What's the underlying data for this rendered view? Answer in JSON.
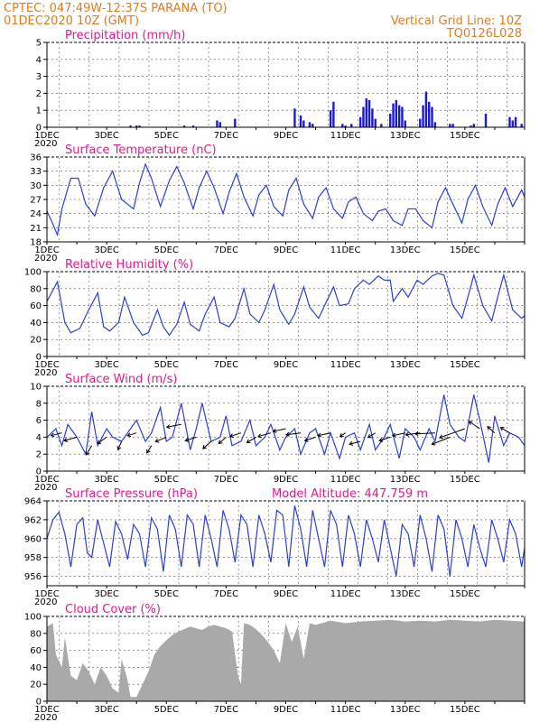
{
  "header": {
    "line1": "CPTEC:   047:49W-12:37S   PARANA (TO)",
    "line2": "01DEC2020  10Z  (GMT)",
    "grid_note": "Vertical Grid Line: 10Z",
    "code": "TQ0126L028"
  },
  "x_axis": {
    "day_labels": [
      "1DEC",
      "3DEC",
      "5DEC",
      "7DEC",
      "9DEC",
      "11DEC",
      "13DEC",
      "15DEC"
    ],
    "year_label": "2020"
  },
  "colors": {
    "line": "#2b3fd9",
    "bar": "#1a1ad6",
    "cloud": "#a9a9a9",
    "header": "#e07b22",
    "panel_title": "#e8188a"
  },
  "chart_data": [
    {
      "id": "precip",
      "type": "bar",
      "title": "Precipitation (mm/h)",
      "ylim": [
        0,
        5
      ],
      "yticks": [
        0,
        1,
        2,
        3,
        4,
        5
      ],
      "x_unit": "days since 01DEC2020 00Z",
      "x": [
        2.8,
        3.0,
        3.1,
        4.6,
        4.9,
        5.7,
        5.8,
        6.3,
        8.3,
        8.5,
        8.6,
        8.8,
        8.9,
        9.5,
        9.6,
        9.9,
        10.0,
        10.2,
        10.5,
        10.6,
        10.7,
        10.8,
        10.9,
        11.0,
        11.2,
        11.5,
        11.6,
        11.7,
        11.8,
        11.9,
        12.0,
        12.5,
        12.6,
        12.7,
        12.8,
        12.9,
        13.0,
        13.5,
        13.6,
        14.2,
        14.3,
        14.7,
        15.5,
        15.6,
        15.7,
        15.9
      ],
      "values": [
        0.1,
        0.1,
        0.1,
        0.1,
        0.1,
        0.4,
        0.3,
        0.5,
        1.1,
        0.7,
        0.4,
        0.3,
        0.2,
        1.0,
        1.5,
        0.2,
        0.1,
        0.2,
        0.6,
        1.2,
        1.7,
        1.6,
        1.1,
        0.5,
        0.2,
        0.8,
        1.4,
        1.6,
        1.3,
        1.2,
        0.4,
        0.5,
        1.3,
        2.1,
        1.5,
        1.2,
        0.3,
        0.2,
        0.2,
        0.1,
        0.2,
        0.8,
        0.6,
        0.4,
        0.6,
        0.2
      ]
    },
    {
      "id": "temp",
      "type": "line",
      "title": "Surface Temperature (nC)",
      "ylim": [
        18,
        36
      ],
      "yticks": [
        18,
        21,
        24,
        27,
        30,
        33,
        36
      ],
      "x_unit": "days since 01DEC2020 00Z",
      "x": [
        0.0,
        0.15,
        0.35,
        0.5,
        0.8,
        1.05,
        1.3,
        1.6,
        1.9,
        2.2,
        2.5,
        2.9,
        3.1,
        3.3,
        3.5,
        3.8,
        4.1,
        4.35,
        4.6,
        4.9,
        5.1,
        5.35,
        5.6,
        5.9,
        6.1,
        6.35,
        6.6,
        6.9,
        7.1,
        7.35,
        7.6,
        7.9,
        8.1,
        8.35,
        8.6,
        8.9,
        9.1,
        9.35,
        9.6,
        9.9,
        10.1,
        10.35,
        10.6,
        10.9,
        11.1,
        11.35,
        11.6,
        11.9,
        12.1,
        12.35,
        12.6,
        12.9,
        13.1,
        13.35,
        13.6,
        13.9,
        14.1,
        14.35,
        14.6,
        14.9,
        15.1,
        15.35,
        15.6,
        15.9,
        16.0
      ],
      "values": [
        24.5,
        22.5,
        19.5,
        25.0,
        31.5,
        31.5,
        26.0,
        23.5,
        29.5,
        33.0,
        27.0,
        25.0,
        30.5,
        34.5,
        31.5,
        25.5,
        31.0,
        34.0,
        30.5,
        25.0,
        29.5,
        33.0,
        29.5,
        24.0,
        28.5,
        32.5,
        27.5,
        23.5,
        28.0,
        30.0,
        25.5,
        23.5,
        29.0,
        31.5,
        26.0,
        23.0,
        27.5,
        29.5,
        25.0,
        23.0,
        26.5,
        27.5,
        24.0,
        22.5,
        24.5,
        25.0,
        22.5,
        21.5,
        25.0,
        25.0,
        22.5,
        21.0,
        26.5,
        29.5,
        26.0,
        22.0,
        27.0,
        30.0,
        25.5,
        21.5,
        26.0,
        29.5,
        25.5,
        29.0,
        27.5
      ]
    },
    {
      "id": "rh",
      "type": "line",
      "title": "Relative Humidity (%)",
      "ylim": [
        0,
        100
      ],
      "yticks": [
        0,
        20,
        40,
        60,
        80,
        100
      ],
      "x_unit": "days since 01DEC2020 00Z",
      "x": [
        0.0,
        0.35,
        0.6,
        0.8,
        1.1,
        1.4,
        1.7,
        1.9,
        2.1,
        2.4,
        2.6,
        2.9,
        3.2,
        3.4,
        3.7,
        3.9,
        4.1,
        4.35,
        4.6,
        4.8,
        5.1,
        5.3,
        5.6,
        5.8,
        6.1,
        6.3,
        6.6,
        6.8,
        7.1,
        7.3,
        7.6,
        7.8,
        8.1,
        8.3,
        8.6,
        8.8,
        9.1,
        9.3,
        9.6,
        9.8,
        10.1,
        10.3,
        10.6,
        10.8,
        11.1,
        11.3,
        11.5,
        11.6,
        11.9,
        12.1,
        12.4,
        12.6,
        12.9,
        13.1,
        13.3,
        13.6,
        13.9,
        14.1,
        14.3,
        14.6,
        14.9,
        15.1,
        15.3,
        15.6,
        15.9,
        16.0
      ],
      "values": [
        65,
        88,
        40,
        28,
        33,
        55,
        75,
        35,
        30,
        40,
        70,
        40,
        25,
        28,
        55,
        35,
        25,
        38,
        64,
        38,
        30,
        50,
        70,
        40,
        35,
        45,
        80,
        50,
        40,
        55,
        85,
        55,
        38,
        50,
        82,
        58,
        45,
        60,
        82,
        60,
        62,
        80,
        90,
        85,
        95,
        90,
        90,
        65,
        80,
        70,
        90,
        85,
        95,
        98,
        96,
        60,
        45,
        70,
        96,
        60,
        42,
        70,
        96,
        55,
        45,
        48
      ]
    },
    {
      "id": "wind",
      "type": "line",
      "title": "Surface Wind (m/s)",
      "ylim": [
        0,
        10
      ],
      "yticks": [
        0,
        2,
        4,
        6,
        8,
        10
      ],
      "x_unit": "days since 01DEC2020 00Z",
      "x": [
        0.0,
        0.3,
        0.5,
        0.7,
        1.0,
        1.3,
        1.5,
        1.7,
        2.0,
        2.2,
        2.5,
        2.8,
        3.0,
        3.3,
        3.5,
        3.8,
        4.0,
        4.2,
        4.5,
        4.8,
        5.0,
        5.2,
        5.5,
        5.8,
        6.0,
        6.2,
        6.5,
        6.8,
        7.0,
        7.3,
        7.5,
        7.8,
        8.0,
        8.3,
        8.5,
        8.8,
        9.0,
        9.3,
        9.5,
        9.8,
        10.0,
        10.3,
        10.5,
        10.8,
        11.0,
        11.3,
        11.5,
        11.8,
        12.0,
        12.3,
        12.5,
        12.8,
        13.0,
        13.3,
        13.5,
        13.8,
        14.0,
        14.3,
        14.5,
        14.8,
        15.0,
        15.3,
        15.5,
        15.8,
        16.0
      ],
      "values": [
        4.0,
        5.0,
        3.0,
        5.5,
        4.0,
        2.0,
        7.0,
        3.0,
        5.0,
        4.0,
        3.5,
        5.0,
        6.0,
        3.5,
        4.5,
        7.5,
        3.5,
        4.0,
        8.0,
        2.5,
        5.0,
        8.0,
        3.5,
        4.0,
        6.5,
        3.0,
        3.5,
        6.0,
        3.0,
        4.0,
        5.5,
        2.5,
        4.0,
        5.0,
        2.0,
        4.5,
        5.0,
        2.0,
        4.5,
        1.5,
        4.0,
        4.5,
        2.5,
        5.5,
        2.5,
        4.0,
        5.5,
        1.5,
        5.0,
        4.0,
        2.5,
        5.0,
        3.5,
        9.0,
        5.5,
        4.0,
        3.5,
        9.0,
        6.0,
        1.0,
        6.5,
        3.0,
        4.5,
        4.0,
        3.0
      ],
      "vectors": [
        {
          "x": 0.5,
          "y": 4.5,
          "dx": -12,
          "dy": 3
        },
        {
          "x": 1.0,
          "y": 4.0,
          "dx": -14,
          "dy": 4
        },
        {
          "x": 1.5,
          "y": 3.0,
          "dx": -6,
          "dy": 10
        },
        {
          "x": 2.0,
          "y": 4.0,
          "dx": -10,
          "dy": 7
        },
        {
          "x": 2.5,
          "y": 3.5,
          "dx": -4,
          "dy": 9
        },
        {
          "x": 3.0,
          "y": 4.5,
          "dx": -10,
          "dy": 3
        },
        {
          "x": 3.5,
          "y": 3.0,
          "dx": -5,
          "dy": 8
        },
        {
          "x": 4.0,
          "y": 4.0,
          "dx": -12,
          "dy": 5
        },
        {
          "x": 4.5,
          "y": 5.5,
          "dx": -16,
          "dy": 3
        },
        {
          "x": 5.0,
          "y": 4.0,
          "dx": -12,
          "dy": 4
        },
        {
          "x": 5.5,
          "y": 3.5,
          "dx": -9,
          "dy": 8
        },
        {
          "x": 6.0,
          "y": 4.0,
          "dx": -8,
          "dy": 7
        },
        {
          "x": 6.5,
          "y": 4.5,
          "dx": -12,
          "dy": 4
        },
        {
          "x": 7.0,
          "y": 4.0,
          "dx": -10,
          "dy": 6
        },
        {
          "x": 7.5,
          "y": 4.5,
          "dx": -14,
          "dy": 4
        },
        {
          "x": 8.0,
          "y": 5.0,
          "dx": -14,
          "dy": 3
        },
        {
          "x": 8.5,
          "y": 4.5,
          "dx": -16,
          "dy": 2
        },
        {
          "x": 9.0,
          "y": 4.0,
          "dx": -12,
          "dy": 4
        },
        {
          "x": 9.5,
          "y": 4.5,
          "dx": -14,
          "dy": 3
        },
        {
          "x": 10.0,
          "y": 4.5,
          "dx": -6,
          "dy": 4
        },
        {
          "x": 10.5,
          "y": 3.5,
          "dx": -12,
          "dy": 3
        },
        {
          "x": 11.0,
          "y": 4.5,
          "dx": -8,
          "dy": 5
        },
        {
          "x": 11.5,
          "y": 4.0,
          "dx": -12,
          "dy": 4
        },
        {
          "x": 12.0,
          "y": 4.5,
          "dx": -14,
          "dy": 3
        },
        {
          "x": 12.5,
          "y": 4.5,
          "dx": -16,
          "dy": 2
        },
        {
          "x": 13.0,
          "y": 4.5,
          "dx": -22,
          "dy": 1
        },
        {
          "x": 13.5,
          "y": 4.0,
          "dx": -20,
          "dy": 8
        },
        {
          "x": 14.0,
          "y": 5.0,
          "dx": -28,
          "dy": 10
        },
        {
          "x": 14.5,
          "y": 5.0,
          "dx": -12,
          "dy": -8
        },
        {
          "x": 15.0,
          "y": 4.5,
          "dx": -8,
          "dy": -7
        },
        {
          "x": 15.5,
          "y": 4.5,
          "dx": -10,
          "dy": -6
        }
      ]
    },
    {
      "id": "pres",
      "type": "line",
      "title": "Surface Pressure (hPa)",
      "subtitle": "Model Altitude: 447.759  m",
      "ylim": [
        955,
        964
      ],
      "yticks": [
        956,
        958,
        960,
        962,
        964
      ],
      "x_unit": "days since 01DEC2020 00Z",
      "x": [
        0.0,
        0.2,
        0.4,
        0.6,
        0.8,
        1.0,
        1.2,
        1.35,
        1.5,
        1.7,
        1.9,
        2.1,
        2.3,
        2.5,
        2.7,
        2.9,
        3.1,
        3.3,
        3.5,
        3.7,
        3.9,
        4.1,
        4.3,
        4.5,
        4.7,
        4.9,
        5.1,
        5.3,
        5.5,
        5.7,
        5.9,
        6.1,
        6.3,
        6.5,
        6.7,
        6.9,
        7.1,
        7.3,
        7.5,
        7.7,
        7.9,
        8.1,
        8.3,
        8.5,
        8.7,
        8.9,
        9.1,
        9.3,
        9.5,
        9.7,
        9.9,
        10.1,
        10.3,
        10.5,
        10.7,
        10.9,
        11.1,
        11.3,
        11.5,
        11.7,
        11.9,
        12.1,
        12.3,
        12.5,
        12.7,
        12.9,
        13.1,
        13.3,
        13.5,
        13.7,
        13.9,
        14.1,
        14.3,
        14.5,
        14.7,
        14.9,
        15.1,
        15.3,
        15.5,
        15.7,
        15.9,
        16.0
      ],
      "values": [
        960.0,
        962.0,
        962.8,
        960.5,
        957.0,
        961.5,
        962.2,
        958.5,
        958.0,
        962.0,
        959.5,
        957.0,
        961.8,
        960.5,
        957.8,
        961.5,
        960.5,
        957.0,
        962.2,
        961.0,
        956.5,
        962.5,
        961.0,
        957.0,
        962.5,
        961.5,
        957.0,
        962.5,
        960.0,
        957.0,
        963.0,
        961.0,
        957.5,
        962.5,
        961.5,
        957.0,
        962.5,
        960.5,
        957.5,
        963.0,
        962.5,
        957.0,
        963.5,
        961.0,
        957.0,
        963.0,
        960.0,
        957.0,
        963.0,
        961.5,
        957.0,
        962.5,
        960.5,
        957.0,
        962.0,
        960.0,
        957.5,
        962.0,
        959.0,
        956.0,
        961.5,
        960.5,
        957.0,
        962.5,
        960.0,
        956.5,
        962.5,
        961.0,
        956.0,
        962.0,
        960.0,
        957.0,
        961.5,
        959.0,
        957.0,
        962.0,
        960.0,
        957.5,
        962.0,
        960.5,
        957.0,
        959.0
      ]
    },
    {
      "id": "cloud",
      "type": "area",
      "title": "Cloud Cover (%)",
      "ylim": [
        0,
        100
      ],
      "yticks": [
        0,
        20,
        40,
        60,
        80,
        100
      ],
      "x_unit": "days since 01DEC2020 00Z",
      "x": [
        0.0,
        0.2,
        0.3,
        0.5,
        0.6,
        0.8,
        1.0,
        1.2,
        1.4,
        1.6,
        1.8,
        2.0,
        2.2,
        2.4,
        2.5,
        2.7,
        2.8,
        3.0,
        3.2,
        3.4,
        3.6,
        3.8,
        4.0,
        4.2,
        4.4,
        4.6,
        4.8,
        5.0,
        5.2,
        5.4,
        5.6,
        5.8,
        6.0,
        6.2,
        6.4,
        6.5,
        6.6,
        6.8,
        7.0,
        7.2,
        7.4,
        7.6,
        7.8,
        8.0,
        8.2,
        8.4,
        8.6,
        8.8,
        9.0,
        9.2,
        9.5,
        10.0,
        10.5,
        11.0,
        11.5,
        12.0,
        12.5,
        13.0,
        13.5,
        14.0,
        14.5,
        15.0,
        15.5,
        16.0
      ],
      "values": [
        88,
        92,
        55,
        40,
        75,
        30,
        25,
        45,
        35,
        20,
        40,
        30,
        15,
        10,
        50,
        25,
        5,
        5,
        20,
        35,
        55,
        65,
        72,
        78,
        82,
        85,
        88,
        86,
        84,
        88,
        90,
        88,
        86,
        82,
        30,
        20,
        92,
        90,
        85,
        78,
        70,
        60,
        45,
        92,
        70,
        88,
        50,
        92,
        90,
        92,
        95,
        92,
        94,
        95,
        96,
        94,
        95,
        94,
        96,
        95,
        94,
        96,
        95,
        94
      ]
    }
  ]
}
